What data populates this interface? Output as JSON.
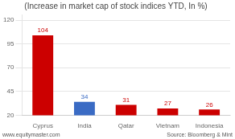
{
  "chart_data": {
    "type": "bar",
    "title": "(Increase in market cap of stock indices YTD, In %)",
    "categories": [
      "Cyprus",
      "India",
      "Qatar",
      "Vietnam",
      "Indonesia"
    ],
    "values": [
      104,
      34,
      31,
      27,
      26
    ],
    "colors": [
      "#cc0000",
      "#3a6bc4",
      "#cc0000",
      "#cc0000",
      "#cc0000"
    ],
    "ylim": [
      20,
      126
    ],
    "yticks": [
      20,
      45,
      70,
      95,
      120
    ],
    "grid": true,
    "data_labels": true,
    "annotations": [
      "www.equitymaster.com",
      "Source: Bloomberg & Mint"
    ]
  }
}
